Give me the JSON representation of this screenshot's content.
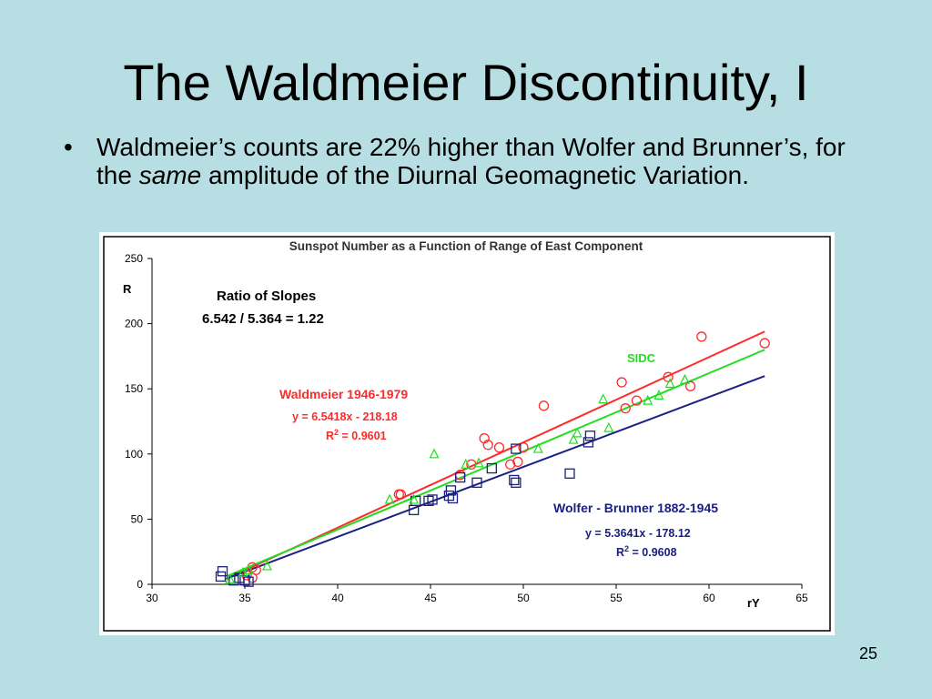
{
  "slide": {
    "title": "The Waldmeier Discontinuity, I",
    "bullet_part1": "Waldmeier’s counts are 22% higher than Wolfer and Brunner’s, for the ",
    "bullet_italic": "same",
    "bullet_part2": " amplitude of the Diurnal Geomagnetic Variation.",
    "page_number": "25"
  },
  "chart_data": {
    "type": "scatter",
    "title": "Sunspot Number as a Function of Range of East Component",
    "xlabel": "rY",
    "ylabel": "R",
    "xlim": [
      30,
      65
    ],
    "ylim": [
      0,
      250
    ],
    "x_ticks": [
      30,
      35,
      40,
      45,
      50,
      55,
      60,
      65
    ],
    "y_ticks": [
      0,
      50,
      100,
      150,
      200,
      250
    ],
    "grid": false,
    "annotations": {
      "ratio_title": "Ratio of Slopes",
      "ratio_value": "6.542 / 5.364 = 1.22",
      "waldmeier_label": "Waldmeier 1946-1979",
      "waldmeier_eq": "y = 6.5418x - 218.18",
      "waldmeier_r2_prefix": "R",
      "waldmeier_r2_value": " = 0.9601",
      "wolfer_label": "Wolfer - Brunner 1882-1945",
      "wolfer_eq": "y = 5.3641x  - 178.12",
      "wolfer_r2_prefix": "R",
      "wolfer_r2_value": " = 0.9608",
      "sidc_label": "SIDC",
      "r2_sup": "2"
    },
    "colors": {
      "waldmeier": "#ff2a2a",
      "wolfer": "#1a2080",
      "sidc": "#22dd22",
      "title": "#333333"
    },
    "series": [
      {
        "name": "Waldmeier 1946-1979",
        "marker": "circle",
        "fit": {
          "slope": 6.5418,
          "intercept": -218.18,
          "x_range": [
            34,
            63
          ]
        },
        "points": [
          [
            35.1,
            7
          ],
          [
            35.4,
            13
          ],
          [
            35.4,
            5
          ],
          [
            35.6,
            11
          ],
          [
            43.3,
            69
          ],
          [
            43.4,
            69
          ],
          [
            46.6,
            84
          ],
          [
            47.2,
            92
          ],
          [
            47.9,
            112
          ],
          [
            48.1,
            107
          ],
          [
            48.7,
            105
          ],
          [
            49.3,
            92
          ],
          [
            49.7,
            94
          ],
          [
            50.0,
            105
          ],
          [
            51.1,
            137
          ],
          [
            55.3,
            155
          ],
          [
            55.5,
            135
          ],
          [
            56.1,
            141
          ],
          [
            57.8,
            159
          ],
          [
            59.0,
            152
          ],
          [
            59.6,
            190
          ],
          [
            63.0,
            185
          ]
        ]
      },
      {
        "name": "Wolfer - Brunner 1882-1945",
        "marker": "square",
        "fit": {
          "slope": 5.3641,
          "intercept": -178.12,
          "x_range": [
            34,
            63
          ]
        },
        "points": [
          [
            33.7,
            6
          ],
          [
            33.8,
            10
          ],
          [
            34.4,
            3
          ],
          [
            34.7,
            5
          ],
          [
            35.0,
            3
          ],
          [
            35.2,
            2
          ],
          [
            44.1,
            57
          ],
          [
            44.2,
            64
          ],
          [
            44.9,
            64
          ],
          [
            45.1,
            65
          ],
          [
            46.0,
            68
          ],
          [
            46.1,
            72
          ],
          [
            46.2,
            66
          ],
          [
            46.6,
            82
          ],
          [
            47.5,
            78
          ],
          [
            48.3,
            89
          ],
          [
            49.5,
            80
          ],
          [
            49.6,
            78
          ],
          [
            49.6,
            104
          ],
          [
            52.5,
            85
          ],
          [
            53.5,
            109
          ],
          [
            53.6,
            114
          ]
        ]
      },
      {
        "name": "SIDC",
        "marker": "triangle",
        "fit": {
          "slope": 6.0,
          "intercept": -198.0,
          "x_range": [
            34,
            63
          ]
        },
        "points": [
          [
            34.2,
            4
          ],
          [
            34.9,
            9
          ],
          [
            35.2,
            11
          ],
          [
            36.2,
            14
          ],
          [
            42.8,
            65
          ],
          [
            44.1,
            65
          ],
          [
            45.2,
            100
          ],
          [
            46.9,
            92
          ],
          [
            47.6,
            93
          ],
          [
            50.8,
            104
          ],
          [
            52.7,
            111
          ],
          [
            52.9,
            116
          ],
          [
            54.3,
            142
          ],
          [
            54.6,
            120
          ],
          [
            56.7,
            141
          ],
          [
            57.3,
            145
          ],
          [
            57.9,
            154
          ],
          [
            58.7,
            157
          ]
        ]
      }
    ]
  }
}
